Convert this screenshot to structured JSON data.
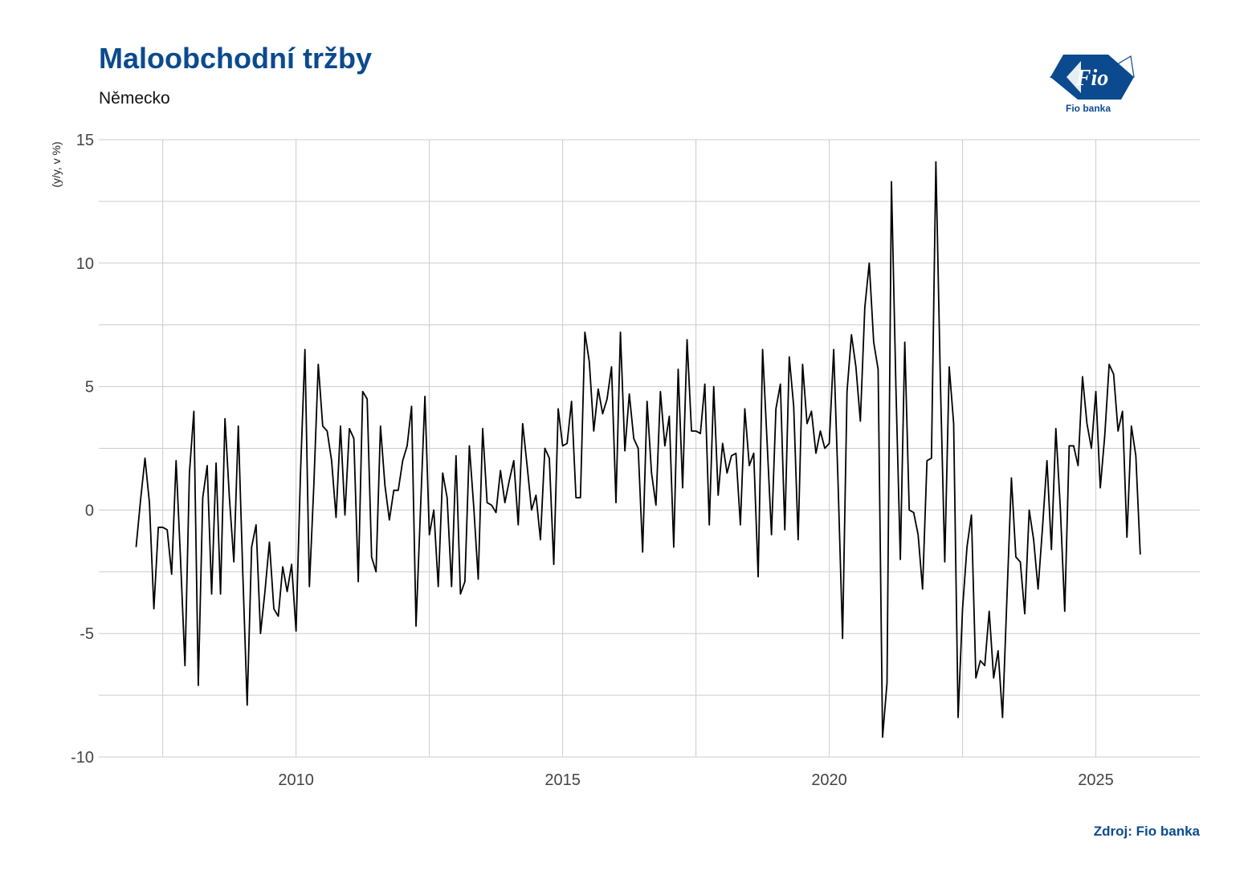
{
  "header": {
    "title": "Maloobchodní tržby",
    "subtitle": "Německo"
  },
  "logo": {
    "mark_text": "Fio",
    "caption": "Fio banka",
    "icon": "fio-logo-icon"
  },
  "footer": {
    "source": "Zdroj: Fio banka"
  },
  "colors": {
    "brand": "#0b4a8f",
    "line": "#000000",
    "grid": "#cccccc"
  },
  "chart_data": {
    "type": "line",
    "title": "Maloobchodní tržby",
    "subtitle": "Německo",
    "ylabel": "(y/y, v %)",
    "xlabel": "",
    "ylim": [
      -10,
      15
    ],
    "yticks": [
      -10,
      -5,
      0,
      5,
      10,
      15
    ],
    "xlim": [
      2006.3,
      2026.95
    ],
    "xticks": [
      2010,
      2015,
      2020,
      2025
    ],
    "grid": true,
    "x_start": 2007.0,
    "frequency": "monthly",
    "series": [
      {
        "values": [
          -1.5,
          0.4,
          2.1,
          0.3,
          -4.0,
          -0.7,
          -0.7,
          -0.8,
          -2.6,
          2.0,
          -2.0,
          -6.3,
          1.5,
          4.0,
          -7.1,
          0.5,
          1.8,
          -3.4,
          1.9,
          -3.4,
          3.7,
          0.5,
          -2.1,
          3.4,
          -2.5,
          -7.9,
          -1.5,
          -0.6,
          -5.0,
          -3.3,
          -1.3,
          -4.0,
          -4.3,
          -2.3,
          -3.3,
          -2.2,
          -4.9,
          1.5,
          6.5,
          -3.1,
          1.0,
          5.9,
          3.4,
          3.2,
          2.0,
          -0.3,
          3.4,
          -0.2,
          3.3,
          2.9,
          -2.9,
          4.8,
          4.5,
          -1.9,
          -2.5,
          3.4,
          1.0,
          -0.4,
          0.8,
          0.8,
          2.0,
          2.6,
          4.2,
          -4.7,
          0.0,
          4.6,
          -1.0,
          0.0,
          -3.1,
          1.5,
          0.5,
          -3.1,
          2.2,
          -3.4,
          -2.9,
          2.6,
          0.1,
          -2.8,
          3.3,
          0.3,
          0.2,
          -0.1,
          1.6,
          0.3,
          1.2,
          2.0,
          -0.6,
          3.5,
          1.8,
          0.0,
          0.6,
          -1.2,
          2.5,
          2.1,
          -2.2,
          4.1,
          2.6,
          2.7,
          4.4,
          0.5,
          0.5,
          7.2,
          6.0,
          3.2,
          4.9,
          3.9,
          4.5,
          5.8,
          0.3,
          7.2,
          2.4,
          4.7,
          2.9,
          2.5,
          -1.7,
          4.4,
          1.5,
          0.2,
          4.8,
          2.6,
          3.8,
          -1.5,
          5.7,
          0.9,
          6.9,
          3.2,
          3.2,
          3.1,
          5.1,
          -0.6,
          5.0,
          0.6,
          2.7,
          1.5,
          2.2,
          2.3,
          -0.6,
          4.1,
          1.8,
          2.3,
          -2.7,
          6.5,
          2.8,
          -1.0,
          4.1,
          5.1,
          -0.8,
          6.2,
          4.2,
          -1.2,
          5.9,
          3.5,
          4.0,
          2.3,
          3.2,
          2.5,
          2.7,
          6.5,
          1.0,
          -5.2,
          4.8,
          7.1,
          5.8,
          3.6,
          8.2,
          10.0,
          6.8,
          5.7,
          -9.2,
          -7.0,
          13.3,
          5.0,
          -2.0,
          6.8,
          0.0,
          -0.1,
          -1.0,
          -3.2,
          2.0,
          2.1,
          14.1,
          5.3,
          -2.1,
          5.8,
          3.5,
          -8.4,
          -4.0,
          -1.5,
          -0.2,
          -6.8,
          -6.1,
          -6.3,
          -4.1,
          -6.8,
          -5.7,
          -8.4,
          -3.5,
          1.3,
          -1.9,
          -2.1,
          -4.2,
          0.0,
          -1.2,
          -3.2,
          -0.7,
          2.0,
          -1.6,
          3.3,
          0.1,
          -4.1,
          2.6,
          2.6,
          1.8,
          5.4,
          3.5,
          2.5,
          4.8,
          0.9,
          3.0,
          5.9,
          5.5,
          3.2,
          4.0,
          -1.1,
          3.4,
          2.2,
          -1.8
        ]
      }
    ]
  }
}
